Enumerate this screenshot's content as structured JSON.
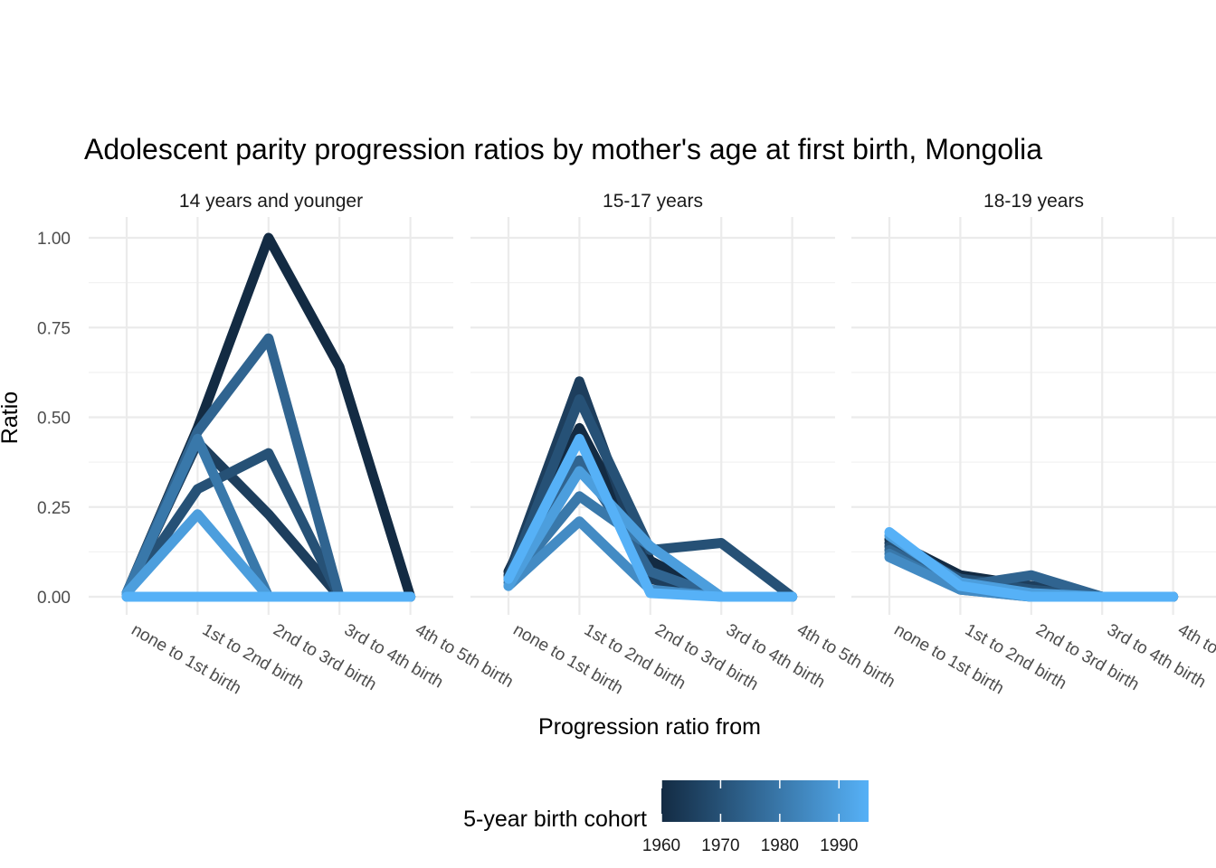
{
  "chart_data": {
    "type": "line",
    "title": "Adolescent parity progression ratios by mother's age at first birth,  Mongolia",
    "xlabel": "Progression ratio from",
    "ylabel": "Ratio",
    "ylim": [
      0,
      1
    ],
    "y_ticks": [
      "0.00",
      "0.25",
      "0.50",
      "0.75",
      "1.00"
    ],
    "categories": [
      "none to 1st birth",
      "1st to 2nd birth",
      "2nd to 3rd birth",
      "3rd to 4th birth",
      "4th to 5th birth"
    ],
    "grid": true,
    "legend": {
      "title": "5-year birth cohort",
      "position": "bottom",
      "type": "colorbar",
      "ticks": [
        "1960",
        "1970",
        "1980",
        "1990"
      ],
      "range": [
        1960,
        1995
      ],
      "color_low": "#132B43",
      "color_high": "#56B1F7"
    },
    "panels": [
      {
        "label": "14 years and younger",
        "series": [
          {
            "cohort": 1960,
            "values": [
              0.01,
              0.47,
              1.0,
              0.64,
              0.0
            ]
          },
          {
            "cohort": 1965,
            "values": [
              0.01,
              0.43,
              0.23,
              0.0,
              0.0
            ]
          },
          {
            "cohort": 1970,
            "values": [
              0.01,
              0.3,
              0.4,
              0.0,
              0.0
            ]
          },
          {
            "cohort": 1975,
            "values": [
              0.01,
              0.46,
              0.72,
              0.0,
              0.0
            ]
          },
          {
            "cohort": 1980,
            "values": [
              0.01,
              0.44,
              0.0,
              0.0,
              0.0
            ]
          },
          {
            "cohort": 1985,
            "values": [
              0.0,
              0.0,
              0.0,
              0.0,
              0.0
            ]
          },
          {
            "cohort": 1990,
            "values": [
              0.01,
              0.23,
              0.0,
              0.0,
              0.0
            ]
          },
          {
            "cohort": 1995,
            "values": [
              0.0,
              0.0,
              0.0,
              0.0,
              0.0
            ]
          }
        ]
      },
      {
        "label": "15-17 years",
        "series": [
          {
            "cohort": 1960,
            "values": [
              0.07,
              0.47,
              0.1,
              0.0,
              0.0
            ]
          },
          {
            "cohort": 1965,
            "values": [
              0.06,
              0.6,
              0.05,
              0.0,
              0.0
            ]
          },
          {
            "cohort": 1970,
            "values": [
              0.05,
              0.55,
              0.13,
              0.15,
              0.0
            ]
          },
          {
            "cohort": 1975,
            "values": [
              0.05,
              0.38,
              0.07,
              0.0,
              0.0
            ]
          },
          {
            "cohort": 1980,
            "values": [
              0.04,
              0.28,
              0.14,
              0.0,
              0.0
            ]
          },
          {
            "cohort": 1985,
            "values": [
              0.03,
              0.21,
              0.02,
              0.0,
              0.0
            ]
          },
          {
            "cohort": 1990,
            "values": [
              0.03,
              0.35,
              0.14,
              0.0,
              0.0
            ]
          },
          {
            "cohort": 1995,
            "values": [
              0.05,
              0.44,
              0.01,
              0.0,
              0.0
            ]
          }
        ]
      },
      {
        "label": "18-19 years",
        "series": [
          {
            "cohort": 1960,
            "values": [
              0.16,
              0.06,
              0.03,
              0.0,
              0.0
            ]
          },
          {
            "cohort": 1965,
            "values": [
              0.15,
              0.05,
              0.03,
              0.0,
              0.0
            ]
          },
          {
            "cohort": 1970,
            "values": [
              0.14,
              0.05,
              0.02,
              0.0,
              0.0
            ]
          },
          {
            "cohort": 1975,
            "values": [
              0.13,
              0.03,
              0.06,
              0.0,
              0.0
            ]
          },
          {
            "cohort": 1980,
            "values": [
              0.12,
              0.02,
              0.0,
              0.0,
              0.0
            ]
          },
          {
            "cohort": 1985,
            "values": [
              0.11,
              0.02,
              0.0,
              0.0,
              0.0
            ]
          },
          {
            "cohort": 1990,
            "values": [
              0.17,
              0.04,
              0.01,
              0.0,
              0.0
            ]
          },
          {
            "cohort": 1995,
            "values": [
              0.18,
              0.03,
              0.0,
              0.0,
              0.0
            ]
          }
        ]
      }
    ]
  }
}
